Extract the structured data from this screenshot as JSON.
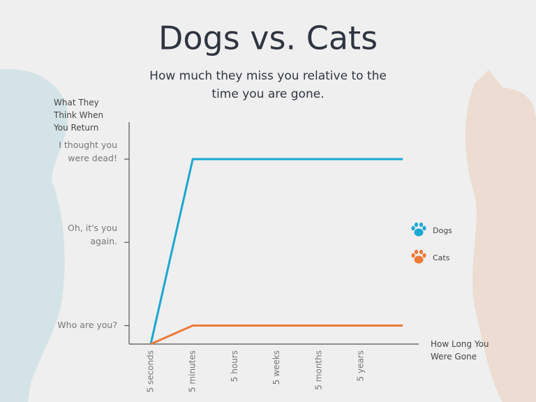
{
  "chart_data": {
    "type": "line",
    "title": "Dogs vs. Cats",
    "subtitle": "How much they miss you relative to the time you are gone.",
    "y_label": "What They Think When You Return",
    "x_label": "How Long You Were Gone",
    "categories": [
      "5 seconds",
      "5 minutes",
      "5 hours",
      "5 weeks",
      "5 months",
      "5 years",
      null
    ],
    "series": [
      {
        "name": "Dogs",
        "color": "#1aa7d1",
        "values": [
          0,
          10,
          10,
          10,
          10,
          10,
          10
        ]
      },
      {
        "name": "Cats",
        "color": "#ee7a36",
        "values": [
          0,
          1,
          1,
          1,
          1,
          1,
          1
        ]
      }
    ],
    "ylim": [
      0,
      12
    ],
    "yticks": [
      {
        "value": 1,
        "label": "Who are you?"
      },
      {
        "value": 5.5,
        "label": "Oh, it's you again."
      },
      {
        "value": 10,
        "label": "I thought you were dead!"
      }
    ],
    "legend": "right"
  }
}
